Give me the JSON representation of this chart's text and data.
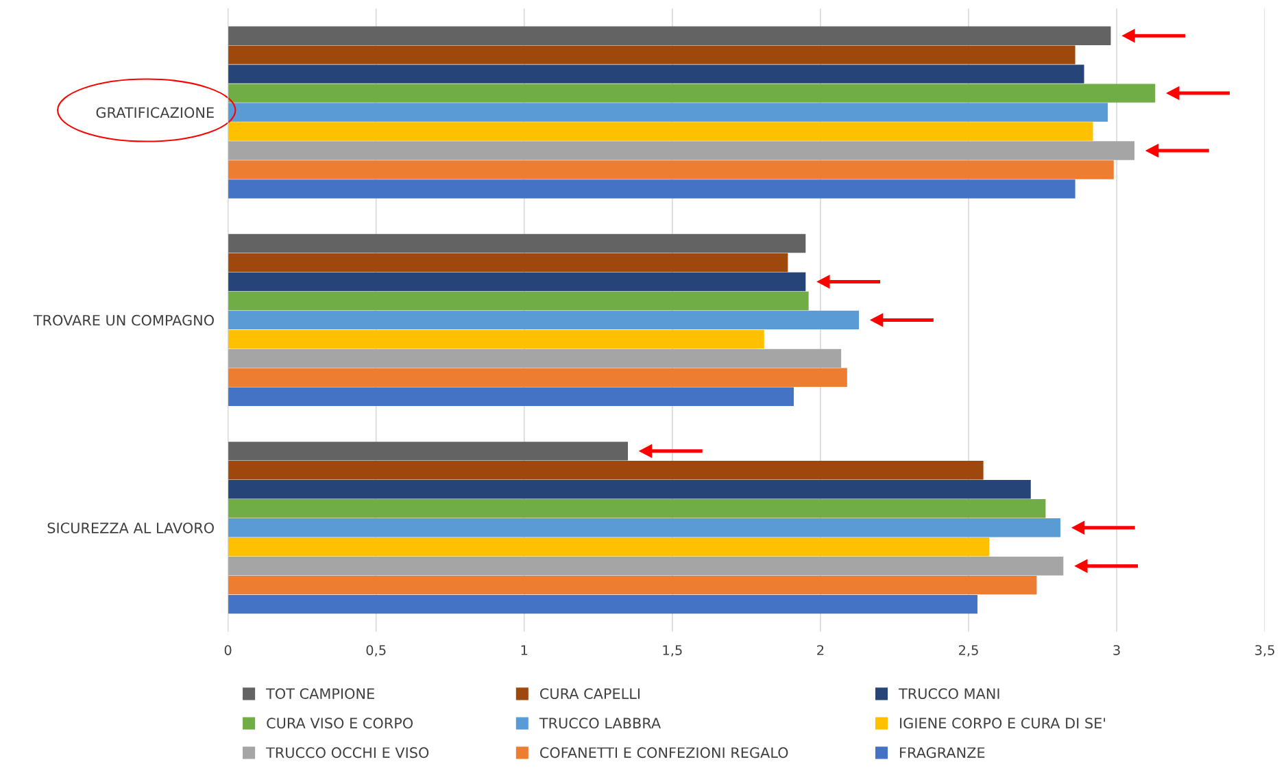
{
  "chart_data": {
    "type": "bar",
    "orientation": "horizontal",
    "categories": [
      "GRATIFICAZIONE",
      "TROVARE UN COMPAGNO",
      "SICUREZZA AL LAVORO"
    ],
    "series": [
      {
        "name": "TOT CAMPIONE",
        "color": "#636363",
        "values": [
          2.98,
          1.95,
          1.35
        ]
      },
      {
        "name": "CURA CAPELLI",
        "color": "#9e480e",
        "values": [
          2.86,
          1.89,
          2.55
        ]
      },
      {
        "name": "TRUCCO MANI",
        "color": "#264478",
        "values": [
          2.89,
          1.95,
          2.71
        ]
      },
      {
        "name": "CURA VISO E CORPO",
        "color": "#70ad47",
        "values": [
          3.13,
          1.96,
          2.76
        ]
      },
      {
        "name": "TRUCCO LABBRA",
        "color": "#5b9bd5",
        "values": [
          2.97,
          2.13,
          2.81
        ]
      },
      {
        "name": "IGIENE CORPO E CURA DI SE'",
        "color": "#ffc000",
        "values": [
          2.92,
          1.81,
          2.57
        ]
      },
      {
        "name": "TRUCCO OCCHI E VISO",
        "color": "#a5a5a5",
        "values": [
          3.06,
          2.07,
          2.82
        ]
      },
      {
        "name": "COFANETTI E CONFEZIONI REGALO",
        "color": "#ed7d31",
        "values": [
          2.99,
          2.09,
          2.73
        ]
      },
      {
        "name": "FRAGRANZE",
        "color": "#4472c4",
        "values": [
          2.86,
          1.91,
          2.53
        ]
      }
    ],
    "xlim": [
      0,
      3.5
    ],
    "xticks": [
      0,
      {
        "value": 0.5,
        "label": "0,5"
      },
      1,
      {
        "value": 1.5,
        "label": "1,5"
      },
      2,
      {
        "value": 2.5,
        "label": "2,5"
      },
      3,
      {
        "value": 3.5,
        "label": "3,5"
      }
    ],
    "grid": "x",
    "legend": "bottom"
  }
}
